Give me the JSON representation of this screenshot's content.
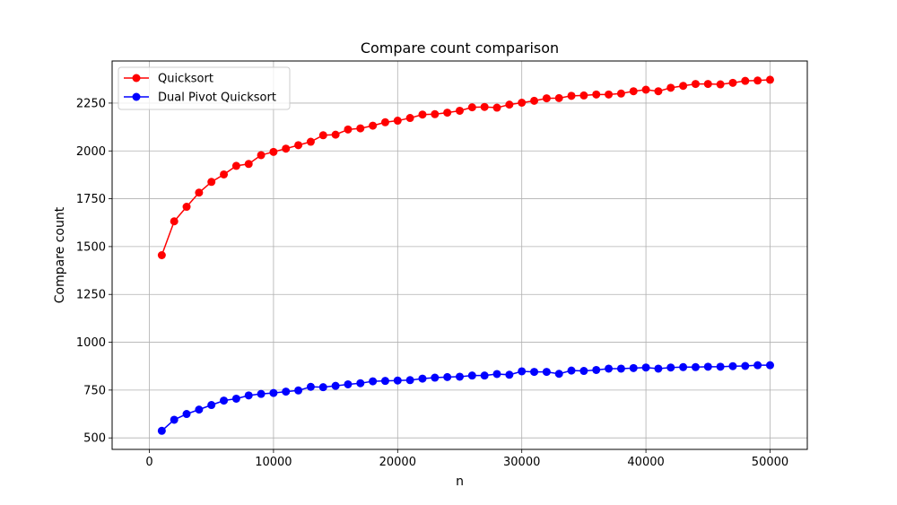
{
  "chart_data": {
    "type": "line",
    "title": "Compare count comparison",
    "xlabel": "n",
    "ylabel": "Compare count",
    "xlim": [
      -3000,
      53000
    ],
    "ylim": [
      440,
      2470
    ],
    "xticks": [
      0,
      10000,
      20000,
      30000,
      40000,
      50000
    ],
    "yticks": [
      500,
      750,
      1000,
      1250,
      1500,
      1750,
      2000,
      2250
    ],
    "grid": true,
    "legend_position": "top-left",
    "x": [
      1000,
      2000,
      3000,
      4000,
      5000,
      6000,
      7000,
      8000,
      9000,
      10000,
      11000,
      12000,
      13000,
      14000,
      15000,
      16000,
      17000,
      18000,
      19000,
      20000,
      21000,
      22000,
      23000,
      24000,
      25000,
      26000,
      27000,
      28000,
      29000,
      30000,
      31000,
      32000,
      33000,
      34000,
      35000,
      36000,
      37000,
      38000,
      39000,
      40000,
      41000,
      42000,
      43000,
      44000,
      45000,
      46000,
      47000,
      48000,
      49000,
      50000
    ],
    "series": [
      {
        "name": "Quicksort",
        "color": "#ff0000",
        "values": [
          1455,
          1632,
          1708,
          1782,
          1838,
          1877,
          1922,
          1932,
          1978,
          1995,
          2012,
          2030,
          2048,
          2082,
          2085,
          2112,
          2118,
          2132,
          2150,
          2158,
          2172,
          2190,
          2192,
          2200,
          2210,
          2228,
          2230,
          2226,
          2242,
          2252,
          2262,
          2275,
          2276,
          2288,
          2290,
          2295,
          2295,
          2300,
          2312,
          2320,
          2312,
          2330,
          2340,
          2350,
          2350,
          2348,
          2356,
          2366,
          2368,
          2372
        ]
      },
      {
        "name": "Dual Pivot Quicksort",
        "color": "#0000ff",
        "values": [
          537,
          595,
          625,
          648,
          672,
          695,
          705,
          722,
          730,
          735,
          742,
          748,
          767,
          765,
          772,
          780,
          786,
          796,
          798,
          800,
          802,
          810,
          815,
          818,
          820,
          826,
          826,
          834,
          830,
          848,
          845,
          845,
          835,
          852,
          850,
          855,
          862,
          862,
          865,
          868,
          862,
          868,
          870,
          870,
          872,
          872,
          875,
          876,
          880,
          880
        ]
      }
    ]
  }
}
